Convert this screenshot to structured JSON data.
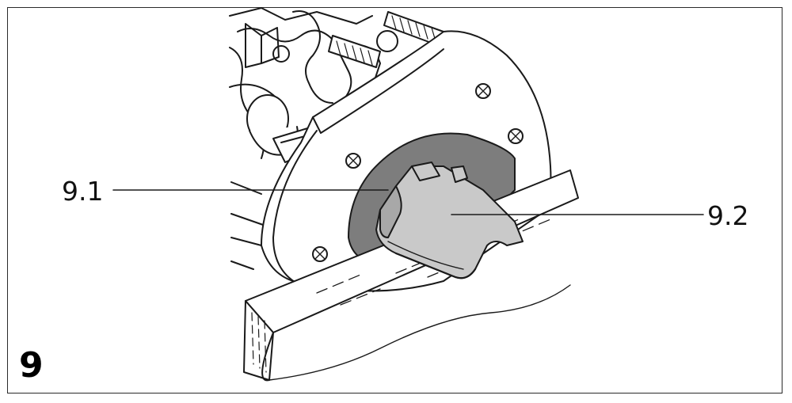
{
  "figure": {
    "number": "9",
    "callouts": [
      {
        "id": "9.1",
        "label": "9.1"
      },
      {
        "id": "9.2",
        "label": "9.2"
      }
    ]
  },
  "colors": {
    "line": "#1a1a1a",
    "paper": "#ffffff",
    "dark_gray": "#7d7d7d",
    "light_gray": "#c9c9c9",
    "mid_gray": "#a8a8a8"
  }
}
